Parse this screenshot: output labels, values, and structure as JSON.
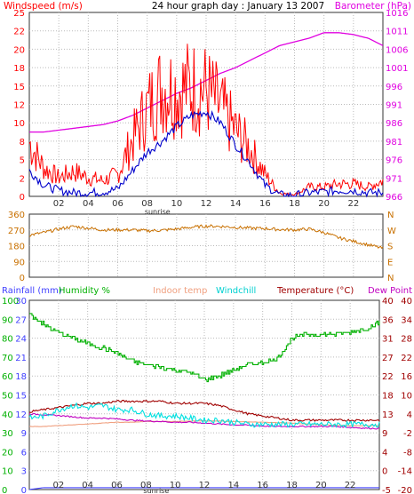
{
  "header": {
    "left_label": "Windspeed (m/s)",
    "center_title": "24 hour graph day : January 13 2007",
    "right_label": "Barometer (hPa)"
  },
  "colors": {
    "wind_gust": "#ff0000",
    "wind_avg": "#0000cc",
    "barometer": "#e000e0",
    "direction": "#c87000",
    "humidity": "#00b000",
    "windchill": "#00e0e0",
    "indoor": "#f0a080",
    "temperature": "#a00000",
    "dewpoint": "#c000c0",
    "rainfall": "#4040ff",
    "left_axis": "#ff0000",
    "right_axis": "#e000e0",
    "temp_axis": "#a00000"
  },
  "x_axis": {
    "hour_labels": [
      "02",
      "04",
      "06",
      "08",
      "10",
      "12",
      "14",
      "16",
      "18",
      "20",
      "22"
    ],
    "sunrise_label": "sunrise"
  },
  "panel1": {
    "wind_ticks": [
      "0",
      "2",
      "5",
      "8",
      "10",
      "12",
      "15",
      "18",
      "20",
      "22",
      "25"
    ],
    "baro_ticks": [
      "966",
      "971",
      "976",
      "981",
      "986",
      "991",
      "996",
      "1001",
      "1006",
      "1011",
      "1016"
    ]
  },
  "panel2": {
    "deg_ticks": [
      "360",
      "270",
      "180",
      "90",
      "0"
    ],
    "compass": [
      "N",
      "W",
      "S",
      "E",
      "N"
    ]
  },
  "panel3": {
    "labels": {
      "rainfall": "Rainfall (mm)",
      "humidity": "Humidity %",
      "indoor": "Indoor temp",
      "windchill": "Windchill",
      "temperature": "Temperature (°C)",
      "dewpoint": "Dew Point"
    },
    "left_ticks": [
      "100",
      "90",
      "80",
      "70",
      "60",
      "50",
      "40",
      "30",
      "20",
      "10",
      "0"
    ],
    "inner_left_ticks": [
      "30",
      "27",
      "24",
      "21",
      "18",
      "15",
      "12",
      "9",
      "6",
      "3",
      "0"
    ],
    "temp_ticks": [
      "40",
      "36",
      "31",
      "27",
      "22",
      "18",
      "13",
      "9",
      "4",
      "0",
      "-5"
    ],
    "temp_ticks_right": [
      "40",
      "34",
      "28",
      "22",
      "16",
      "10",
      "4",
      "-2",
      "-8",
      "-14",
      "-20"
    ]
  },
  "chart_data": [
    {
      "type": "line",
      "title": "24 hour graph day : January 13 2007",
      "xlabel": "",
      "xlim": [
        0,
        24
      ],
      "ylabel": "Windspeed (m/s)",
      "ylim": [
        0,
        25
      ],
      "y2label": "Barometer (hPa)",
      "y2lim": [
        966,
        1016
      ],
      "x": [
        0,
        1,
        2,
        3,
        4,
        5,
        6,
        7,
        8,
        9,
        10,
        11,
        12,
        13,
        14,
        15,
        16,
        17,
        18,
        19,
        20,
        21,
        22,
        23,
        24
      ],
      "series": [
        {
          "name": "Windspeed (m/s)",
          "role": "gust",
          "axis": "left",
          "values": [
            8.5,
            4.5,
            3,
            4,
            3,
            2.5,
            3.5,
            9,
            14,
            17.5,
            17,
            17.5,
            17,
            14,
            10.5,
            7.5,
            3.5,
            0.5,
            0.3,
            1.5,
            1.5,
            2,
            2,
            1.5,
            2.5
          ]
        },
        {
          "name": "Windspeed (m/s)",
          "role": "average",
          "axis": "left",
          "values": [
            3.5,
            1.5,
            0.8,
            0.5,
            0.5,
            0.6,
            1,
            3.5,
            6,
            7.5,
            9.5,
            11,
            11.5,
            10,
            7,
            4.5,
            1.5,
            0.2,
            0.1,
            0.5,
            0.6,
            0.8,
            0.8,
            0.5,
            0.5
          ]
        },
        {
          "name": "Barometer (hPa)",
          "axis": "right",
          "values": [
            983.5,
            983.5,
            984,
            984.5,
            985,
            985.5,
            986.5,
            988,
            990,
            992,
            994,
            995.5,
            997.5,
            999.5,
            1001,
            1003,
            1005,
            1007,
            1008,
            1009,
            1010.5,
            1010.5,
            1010,
            1009,
            1007
          ]
        }
      ]
    },
    {
      "type": "line",
      "xlim": [
        0,
        24
      ],
      "ylim": [
        0,
        360
      ],
      "series": [
        {
          "name": "",
          "values": [
            240,
            255,
            275,
            290,
            280,
            270,
            270,
            270,
            265,
            268,
            275,
            285,
            292,
            290,
            285,
            280,
            278,
            272,
            270,
            275,
            255,
            225,
            205,
            185,
            165
          ]
        }
      ]
    },
    {
      "type": "line",
      "xlim": [
        0,
        24
      ],
      "series": [
        {
          "name": "Humidity %",
          "axis": "left",
          "ylim": [
            0,
            100
          ],
          "values": [
            93,
            87,
            83,
            80,
            77,
            75,
            72,
            68,
            66,
            65,
            63,
            62,
            58,
            60,
            63,
            66,
            67,
            69,
            80,
            82,
            82,
            82,
            83,
            85,
            88
          ]
        },
        {
          "name": "Temperature (°C)",
          "axis": "temp",
          "ylim": [
            -5,
            40
          ],
          "values": [
            13.5,
            14,
            14.5,
            15,
            15.5,
            15.5,
            16,
            16,
            16,
            16,
            15.5,
            15.5,
            15.5,
            15,
            14,
            13,
            12.5,
            12,
            11.5,
            11.5,
            11.5,
            11.5,
            11.5,
            11.5,
            11.5
          ]
        },
        {
          "name": "Windchill",
          "axis": "temp",
          "ylim": [
            -5,
            40
          ],
          "values": [
            12,
            12.5,
            14,
            15,
            14.5,
            15,
            14,
            14,
            13,
            12.5,
            12.5,
            12,
            11.5,
            11.5,
            11,
            10.5,
            10.5,
            10.5,
            10.5,
            10.5,
            10.5,
            10.5,
            10.5,
            10.5,
            10.5
          ]
        },
        {
          "name": "Dew Point",
          "axis": "temp",
          "ylim": [
            -5,
            40
          ],
          "values": [
            13,
            12.8,
            12.6,
            12.3,
            12,
            12,
            11.8,
            11.5,
            11.3,
            11.2,
            11,
            11,
            10.8,
            10.6,
            10.4,
            10.3,
            10.1,
            10,
            10,
            10,
            10,
            10,
            9.8,
            9.6,
            9.5
          ]
        },
        {
          "name": "Indoor temp",
          "axis": "temp",
          "ylim": [
            -5,
            40
          ],
          "values": [
            10,
            10,
            10.2,
            10.4,
            10.6,
            10.8,
            11,
            11,
            11.2,
            11.2,
            11.2,
            11.3,
            11.3,
            11.3,
            11.2,
            11.1,
            11,
            10.9,
            10.8,
            10.6,
            10.4,
            10.3,
            10.2,
            10.2,
            10.2
          ]
        },
        {
          "name": "Rainfall (mm)",
          "axis": "inner_left",
          "ylim": [
            0,
            30
          ],
          "values": [
            0,
            0.3,
            0.3,
            0.3,
            0.3,
            0.3,
            0.3,
            0.3,
            0.3,
            0.3,
            0.3,
            0.3,
            0.3,
            0.3,
            0.3,
            0.3,
            0.3,
            0.3,
            0.3,
            0.3,
            0.3,
            0.3,
            0.3,
            0.3,
            0.3
          ]
        }
      ]
    }
  ]
}
